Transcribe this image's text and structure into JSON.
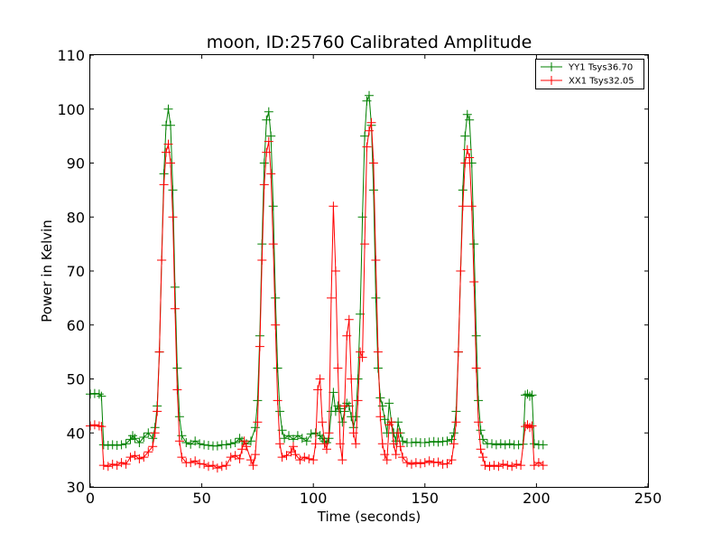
{
  "chart_data": {
    "type": "line",
    "title": "moon, ID:25760 Calibrated Amplitude",
    "xlabel": "Time (seconds)",
    "ylabel": "Power in Kelvin",
    "xlim": [
      0,
      250
    ],
    "ylim": [
      30,
      110
    ],
    "xticks": [
      0,
      50,
      100,
      150,
      200,
      250
    ],
    "yticks": [
      30,
      40,
      50,
      60,
      70,
      80,
      90,
      100,
      110
    ],
    "grid": false,
    "legend_position": "top-right",
    "series": [
      {
        "name": "YY1 Tsys36.70",
        "color": "#008000",
        "marker": "+",
        "points": [
          [
            0,
            47.2
          ],
          [
            2,
            47.3
          ],
          [
            4,
            47.2
          ],
          [
            5,
            46.8
          ],
          [
            6,
            37.8
          ],
          [
            8,
            37.7
          ],
          [
            10,
            37.8
          ],
          [
            12,
            37.7
          ],
          [
            14,
            37.8
          ],
          [
            16,
            38.0
          ],
          [
            18,
            38.8
          ],
          [
            19,
            39.5
          ],
          [
            20,
            39.0
          ],
          [
            22,
            38.2
          ],
          [
            24,
            39.2
          ],
          [
            26,
            40.0
          ],
          [
            28,
            39.0
          ],
          [
            29,
            41.0
          ],
          [
            30,
            45.0
          ],
          [
            31,
            55.0
          ],
          [
            32,
            72.0
          ],
          [
            33,
            88.0
          ],
          [
            34,
            97.0
          ],
          [
            35,
            100.0
          ],
          [
            36,
            97.0
          ],
          [
            37,
            85.0
          ],
          [
            38,
            67.0
          ],
          [
            39,
            52.0
          ],
          [
            40,
            43.0
          ],
          [
            41,
            39.5
          ],
          [
            43,
            38.2
          ],
          [
            45,
            37.9
          ],
          [
            47,
            38.5
          ],
          [
            49,
            38.0
          ],
          [
            51,
            37.8
          ],
          [
            53,
            37.7
          ],
          [
            55,
            37.6
          ],
          [
            57,
            37.6
          ],
          [
            59,
            37.8
          ],
          [
            61,
            37.8
          ],
          [
            63,
            38.0
          ],
          [
            65,
            38.2
          ],
          [
            67,
            39.0
          ],
          [
            68,
            38.5
          ],
          [
            70,
            38.0
          ],
          [
            72,
            38.5
          ],
          [
            74,
            41.0
          ],
          [
            75,
            46.0
          ],
          [
            76,
            58.0
          ],
          [
            77,
            75.0
          ],
          [
            78,
            90.0
          ],
          [
            79,
            98.0
          ],
          [
            80,
            99.5
          ],
          [
            81,
            95.0
          ],
          [
            82,
            82.0
          ],
          [
            83,
            65.0
          ],
          [
            84,
            52.0
          ],
          [
            85,
            44.0
          ],
          [
            86,
            40.5
          ],
          [
            87,
            39.0
          ],
          [
            89,
            39.5
          ],
          [
            91,
            38.8
          ],
          [
            93,
            39.5
          ],
          [
            95,
            39.0
          ],
          [
            97,
            38.5
          ],
          [
            99,
            39.8
          ],
          [
            101,
            40.0
          ],
          [
            103,
            39.5
          ],
          [
            104,
            39.0
          ],
          [
            105,
            38.5
          ],
          [
            106,
            38.2
          ],
          [
            107,
            39.0
          ],
          [
            108,
            44.0
          ],
          [
            109,
            47.5
          ],
          [
            110,
            44.0
          ],
          [
            111,
            45.0
          ],
          [
            112,
            44.5
          ],
          [
            113,
            42.0
          ],
          [
            114,
            44.0
          ],
          [
            115,
            45.5
          ],
          [
            116,
            45.0
          ],
          [
            117,
            43.0
          ],
          [
            118,
            41.0
          ],
          [
            119,
            43.0
          ],
          [
            120,
            50.0
          ],
          [
            121,
            62.0
          ],
          [
            122,
            80.0
          ],
          [
            123,
            95.0
          ],
          [
            124,
            101.5
          ],
          [
            125,
            102.5
          ],
          [
            126,
            97.0
          ],
          [
            127,
            85.0
          ],
          [
            128,
            65.0
          ],
          [
            129,
            52.0
          ],
          [
            130,
            46.5
          ],
          [
            131,
            45.0
          ],
          [
            132,
            42.5
          ],
          [
            133,
            40.0
          ],
          [
            134,
            45.5
          ],
          [
            135,
            42.0
          ],
          [
            136,
            40.0
          ],
          [
            137,
            38.5
          ],
          [
            138,
            42.0
          ],
          [
            139,
            40.0
          ],
          [
            140,
            38.5
          ],
          [
            142,
            38.2
          ],
          [
            144,
            38.2
          ],
          [
            146,
            38.3
          ],
          [
            148,
            38.2
          ],
          [
            150,
            38.2
          ],
          [
            152,
            38.3
          ],
          [
            154,
            38.4
          ],
          [
            156,
            38.3
          ],
          [
            158,
            38.4
          ],
          [
            160,
            38.5
          ],
          [
            162,
            38.8
          ],
          [
            163,
            40.0
          ],
          [
            164,
            44.0
          ],
          [
            165,
            55.0
          ],
          [
            166,
            70.0
          ],
          [
            167,
            85.0
          ],
          [
            168,
            95.0
          ],
          [
            169,
            99.0
          ],
          [
            170,
            98.0
          ],
          [
            171,
            90.0
          ],
          [
            172,
            75.0
          ],
          [
            173,
            58.0
          ],
          [
            174,
            46.0
          ],
          [
            175,
            40.5
          ],
          [
            176,
            38.8
          ],
          [
            178,
            38.0
          ],
          [
            180,
            38.0
          ],
          [
            182,
            37.8
          ],
          [
            184,
            38.0
          ],
          [
            186,
            37.8
          ],
          [
            188,
            38.0
          ],
          [
            190,
            37.8
          ],
          [
            192,
            37.8
          ],
          [
            194,
            37.9
          ],
          [
            195,
            47.0
          ],
          [
            196,
            47.2
          ],
          [
            197,
            46.8
          ],
          [
            198,
            47.0
          ],
          [
            199,
            38.0
          ],
          [
            201,
            37.8
          ],
          [
            203,
            37.8
          ]
        ]
      },
      {
        "name": "XX1 Tsys32.05",
        "color": "#ff0000",
        "marker": "+",
        "points": [
          [
            0,
            41.3
          ],
          [
            2,
            41.5
          ],
          [
            4,
            41.3
          ],
          [
            5,
            41.2
          ],
          [
            6,
            34.0
          ],
          [
            8,
            33.8
          ],
          [
            10,
            34.2
          ],
          [
            12,
            34.0
          ],
          [
            14,
            34.5
          ],
          [
            16,
            34.2
          ],
          [
            18,
            35.5
          ],
          [
            20,
            35.8
          ],
          [
            22,
            35.2
          ],
          [
            24,
            35.5
          ],
          [
            26,
            36.5
          ],
          [
            28,
            37.5
          ],
          [
            29,
            40.0
          ],
          [
            30,
            44.0
          ],
          [
            31,
            55.0
          ],
          [
            32,
            72.0
          ],
          [
            33,
            86.0
          ],
          [
            34,
            92.0
          ],
          [
            35,
            93.5
          ],
          [
            36,
            90.0
          ],
          [
            37,
            80.0
          ],
          [
            38,
            63.0
          ],
          [
            39,
            48.0
          ],
          [
            40,
            38.5
          ],
          [
            41,
            35.5
          ],
          [
            43,
            34.5
          ],
          [
            45,
            34.5
          ],
          [
            47,
            34.8
          ],
          [
            49,
            34.3
          ],
          [
            51,
            34.2
          ],
          [
            53,
            33.8
          ],
          [
            55,
            34.0
          ],
          [
            57,
            33.5
          ],
          [
            59,
            33.8
          ],
          [
            61,
            34.0
          ],
          [
            63,
            35.5
          ],
          [
            65,
            35.8
          ],
          [
            67,
            35.2
          ],
          [
            68,
            37.0
          ],
          [
            69,
            38.5
          ],
          [
            70,
            37.5
          ],
          [
            72,
            35.0
          ],
          [
            73,
            34.0
          ],
          [
            74,
            36.0
          ],
          [
            75,
            42.0
          ],
          [
            76,
            56.0
          ],
          [
            77,
            72.0
          ],
          [
            78,
            86.0
          ],
          [
            79,
            92.0
          ],
          [
            80,
            94.0
          ],
          [
            81,
            88.0
          ],
          [
            82,
            75.0
          ],
          [
            83,
            60.0
          ],
          [
            84,
            46.0
          ],
          [
            85,
            38.0
          ],
          [
            86,
            35.5
          ],
          [
            88,
            35.8
          ],
          [
            90,
            36.5
          ],
          [
            91,
            37.5
          ],
          [
            92,
            36.0
          ],
          [
            94,
            35.0
          ],
          [
            96,
            35.5
          ],
          [
            98,
            35.2
          ],
          [
            100,
            35.0
          ],
          [
            101,
            38.0
          ],
          [
            102,
            48.0
          ],
          [
            103,
            50.0
          ],
          [
            104,
            42.0
          ],
          [
            105,
            38.0
          ],
          [
            106,
            37.0
          ],
          [
            107,
            40.0
          ],
          [
            108,
            65.0
          ],
          [
            109,
            82.0
          ],
          [
            110,
            70.0
          ],
          [
            111,
            52.0
          ],
          [
            112,
            38.0
          ],
          [
            113,
            35.0
          ],
          [
            114,
            45.0
          ],
          [
            115,
            58.0
          ],
          [
            116,
            61.0
          ],
          [
            117,
            50.0
          ],
          [
            118,
            40.0
          ],
          [
            119,
            38.0
          ],
          [
            120,
            46.0
          ],
          [
            121,
            55.0
          ],
          [
            122,
            54.0
          ],
          [
            123,
            75.0
          ],
          [
            124,
            93.0
          ],
          [
            125,
            96.0
          ],
          [
            126,
            97.5
          ],
          [
            127,
            90.0
          ],
          [
            128,
            72.0
          ],
          [
            129,
            55.0
          ],
          [
            130,
            43.0
          ],
          [
            131,
            38.0
          ],
          [
            132,
            36.0
          ],
          [
            133,
            35.0
          ],
          [
            134,
            41.5
          ],
          [
            135,
            42.0
          ],
          [
            136,
            38.0
          ],
          [
            137,
            36.0
          ],
          [
            138,
            40.0
          ],
          [
            139,
            37.5
          ],
          [
            140,
            35.5
          ],
          [
            142,
            34.5
          ],
          [
            144,
            34.2
          ],
          [
            146,
            34.5
          ],
          [
            148,
            34.3
          ],
          [
            150,
            34.5
          ],
          [
            152,
            34.8
          ],
          [
            154,
            34.5
          ],
          [
            156,
            34.6
          ],
          [
            158,
            34.2
          ],
          [
            160,
            34.3
          ],
          [
            162,
            35.0
          ],
          [
            163,
            38.0
          ],
          [
            164,
            42.0
          ],
          [
            165,
            55.0
          ],
          [
            166,
            70.0
          ],
          [
            167,
            82.0
          ],
          [
            168,
            90.0
          ],
          [
            169,
            92.5
          ],
          [
            170,
            91.0
          ],
          [
            171,
            82.0
          ],
          [
            172,
            68.0
          ],
          [
            173,
            52.0
          ],
          [
            174,
            42.0
          ],
          [
            175,
            37.0
          ],
          [
            176,
            35.5
          ],
          [
            177,
            34.0
          ],
          [
            179,
            33.8
          ],
          [
            181,
            34.0
          ],
          [
            183,
            33.8
          ],
          [
            185,
            34.2
          ],
          [
            187,
            34.0
          ],
          [
            189,
            33.8
          ],
          [
            191,
            34.2
          ],
          [
            193,
            34.0
          ],
          [
            195,
            41.2
          ],
          [
            196,
            41.5
          ],
          [
            197,
            41.0
          ],
          [
            198,
            41.3
          ],
          [
            199,
            34.0
          ],
          [
            201,
            34.5
          ],
          [
            203,
            34.0
          ]
        ]
      }
    ]
  }
}
